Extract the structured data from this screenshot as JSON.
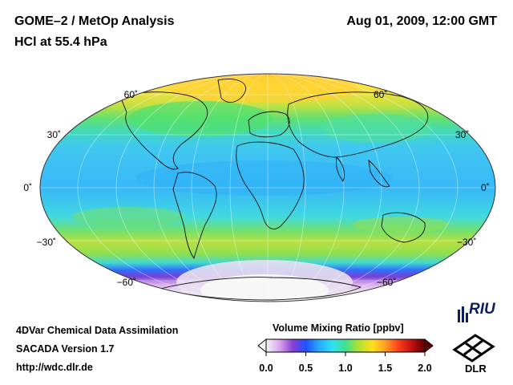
{
  "header": {
    "title": "GOME–2 / MetOp Analysis",
    "datetime": "Aug 01, 2009, 12:00 GMT",
    "subtitle": "HCl at 55.4 hPa"
  },
  "footer": {
    "line1": "4DVar Chemical Data Assimilation",
    "line2": "SACADA Version 1.7",
    "line3": "http://wdc.dlr.de"
  },
  "map": {
    "projection": "Mollweide",
    "latitude_labels": [
      "60˚",
      "30˚",
      "0˚",
      "−30˚",
      "−60˚"
    ],
    "latitude_values": [
      60,
      30,
      0,
      -30,
      -60
    ]
  },
  "colorbar": {
    "title": "Volume Mixing Ratio [ppbv]",
    "ticks": [
      "0.0",
      "0.5",
      "1.0",
      "1.5",
      "2.0"
    ],
    "tick_values": [
      0.0,
      0.5,
      1.0,
      1.5,
      2.0
    ],
    "range": [
      0.0,
      2.0
    ],
    "colors": [
      "#f4f4f4",
      "#d9a8ee",
      "#8a3fd0",
      "#2050ff",
      "#28a8ff",
      "#30e0f0",
      "#40e090",
      "#b0e030",
      "#ffe020",
      "#ffa020",
      "#ff4020",
      "#c01010",
      "#600000"
    ]
  },
  "logos": {
    "riu": "RIU",
    "dlr": "DLR"
  }
}
